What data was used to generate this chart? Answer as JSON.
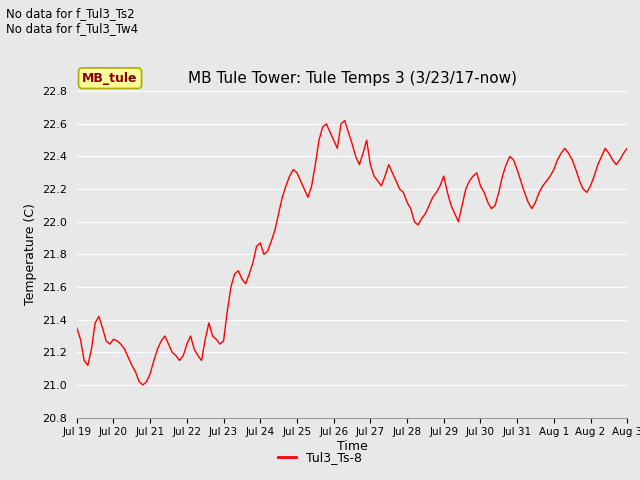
{
  "title": "MB Tule Tower: Tule Temps 3 (3/23/17-now)",
  "ylabel": "Temperature (C)",
  "xlabel": "Time",
  "no_data_text": [
    "No data for f_Tul3_Ts2",
    "No data for f_Tul3_Tw4"
  ],
  "legend_label": "Tul3_Ts-8",
  "mb_tule_label": "MB_tule",
  "line_color": "#ff0000",
  "ylim": [
    20.8,
    22.8
  ],
  "yticks": [
    20.8,
    21.0,
    21.2,
    21.4,
    21.6,
    21.8,
    22.0,
    22.2,
    22.4,
    22.6,
    22.8
  ],
  "tick_labels": [
    "Jul 19",
    "Jul 20",
    "Jul 21",
    "Jul 22",
    "Jul 23",
    "Jul 24",
    "Jul 25",
    "Jul 26",
    "Jul 27",
    "Jul 28",
    "Jul 29",
    "Jul 30",
    "Jul 31",
    "Aug 1",
    "Aug 2",
    "Aug 3"
  ],
  "bg_color": "#e8e8e8",
  "grid_color": "#ffffff",
  "x_points": [
    0,
    0.1,
    0.2,
    0.3,
    0.4,
    0.5,
    0.6,
    0.7,
    0.8,
    0.9,
    1.0,
    1.1,
    1.2,
    1.3,
    1.4,
    1.5,
    1.6,
    1.7,
    1.8,
    1.9,
    2.0,
    2.1,
    2.2,
    2.3,
    2.4,
    2.5,
    2.6,
    2.7,
    2.8,
    2.9,
    3.0,
    3.1,
    3.2,
    3.3,
    3.4,
    3.5,
    3.6,
    3.7,
    3.8,
    3.9,
    4.0,
    4.1,
    4.2,
    4.3,
    4.4,
    4.5,
    4.6,
    4.7,
    4.8,
    4.9,
    5.0,
    5.1,
    5.2,
    5.3,
    5.4,
    5.5,
    5.6,
    5.7,
    5.8,
    5.9,
    6.0,
    6.1,
    6.2,
    6.3,
    6.4,
    6.5,
    6.6,
    6.7,
    6.8,
    6.9,
    7.0,
    7.1,
    7.2,
    7.3,
    7.4,
    7.5,
    7.6,
    7.7,
    7.8,
    7.9,
    8.0,
    8.1,
    8.2,
    8.3,
    8.4,
    8.5,
    8.6,
    8.7,
    8.8,
    8.9,
    9.0,
    9.1,
    9.2,
    9.3,
    9.4,
    9.5,
    9.6,
    9.7,
    9.8,
    9.9,
    10.0,
    10.1,
    10.2,
    10.3,
    10.4,
    10.5,
    10.6,
    10.7,
    10.8,
    10.9,
    11.0,
    11.1,
    11.2,
    11.3,
    11.4,
    11.5,
    11.6,
    11.7,
    11.8,
    11.9,
    12.0,
    12.1,
    12.2,
    12.3,
    12.4,
    12.5,
    12.6,
    12.7,
    12.8,
    12.9,
    13.0,
    13.1,
    13.2,
    13.3,
    13.4,
    13.5,
    13.6,
    13.7,
    13.8,
    13.9,
    14.0,
    14.1,
    14.2,
    14.3,
    14.4,
    14.5,
    14.6,
    14.7,
    14.8,
    14.9,
    15.0
  ],
  "y_points": [
    21.35,
    21.28,
    21.15,
    21.12,
    21.22,
    21.38,
    21.42,
    21.35,
    21.27,
    21.25,
    21.28,
    21.27,
    21.25,
    21.22,
    21.17,
    21.12,
    21.08,
    21.02,
    21.0,
    21.02,
    21.07,
    21.15,
    21.22,
    21.27,
    21.3,
    21.25,
    21.2,
    21.18,
    21.15,
    21.18,
    21.25,
    21.3,
    21.22,
    21.18,
    21.15,
    21.28,
    21.38,
    21.3,
    21.28,
    21.25,
    21.27,
    21.45,
    21.6,
    21.68,
    21.7,
    21.65,
    21.62,
    21.68,
    21.75,
    21.85,
    21.87,
    21.8,
    21.82,
    21.88,
    21.95,
    22.05,
    22.15,
    22.22,
    22.28,
    22.32,
    22.3,
    22.25,
    22.2,
    22.15,
    22.22,
    22.35,
    22.5,
    22.58,
    22.6,
    22.55,
    22.5,
    22.45,
    22.6,
    22.62,
    22.55,
    22.48,
    22.4,
    22.35,
    22.42,
    22.5,
    22.35,
    22.28,
    22.25,
    22.22,
    22.28,
    22.35,
    22.3,
    22.25,
    22.2,
    22.18,
    22.12,
    22.08,
    22.0,
    21.98,
    22.02,
    22.05,
    22.1,
    22.15,
    22.18,
    22.22,
    22.28,
    22.18,
    22.1,
    22.05,
    22.0,
    22.1,
    22.2,
    22.25,
    22.28,
    22.3,
    22.22,
    22.18,
    22.12,
    22.08,
    22.1,
    22.18,
    22.28,
    22.35,
    22.4,
    22.38,
    22.32,
    22.25,
    22.18,
    22.12,
    22.08,
    22.12,
    22.18,
    22.22,
    22.25,
    22.28,
    22.32,
    22.38,
    22.42,
    22.45,
    22.42,
    22.38,
    22.32,
    22.25,
    22.2,
    22.18,
    22.22,
    22.28,
    22.35,
    22.4,
    22.45,
    22.42,
    22.38,
    22.35,
    22.38,
    22.42,
    22.45
  ]
}
